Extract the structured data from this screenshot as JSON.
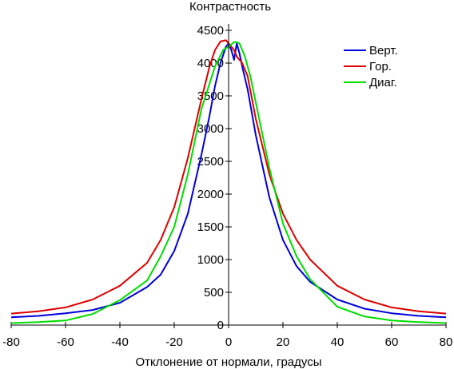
{
  "chart_data": {
    "type": "line",
    "ylabel": "Контрастность",
    "xlabel": "Отклонение от нормали, градусы",
    "xlim": [
      -80,
      80
    ],
    "ylim": [
      0,
      4500
    ],
    "xticks": [
      -80,
      -60,
      -40,
      -20,
      0,
      20,
      40,
      60,
      80
    ],
    "yticks": [
      0,
      500,
      1000,
      1500,
      2000,
      2500,
      3000,
      3500,
      4000,
      4500
    ],
    "grid": false,
    "legend_position": "top-right",
    "series": [
      {
        "name": "Верт.",
        "color": "#0000dd",
        "x": [
          -80,
          -70,
          -60,
          -50,
          -40,
          -30,
          -25,
          -20,
          -15,
          -10,
          -7,
          -5,
          -3,
          -1,
          0,
          1,
          2,
          3,
          4,
          5,
          7,
          10,
          15,
          20,
          25,
          30,
          40,
          50,
          60,
          70,
          80
        ],
        "y": [
          120,
          140,
          180,
          230,
          340,
          580,
          770,
          1130,
          1700,
          2600,
          3200,
          3650,
          4000,
          4250,
          4300,
          4200,
          4050,
          4300,
          4150,
          3950,
          3600,
          2900,
          1950,
          1300,
          900,
          660,
          390,
          250,
          180,
          140,
          120
        ]
      },
      {
        "name": "Гор.",
        "color": "#dd0000",
        "x": [
          -80,
          -70,
          -60,
          -50,
          -40,
          -30,
          -25,
          -20,
          -15,
          -10,
          -7,
          -5,
          -3,
          -1,
          0,
          1,
          2,
          3,
          4,
          5,
          7,
          10,
          15,
          20,
          25,
          30,
          40,
          50,
          60,
          70,
          80
        ],
        "y": [
          175,
          210,
          270,
          390,
          600,
          950,
          1300,
          1800,
          2550,
          3450,
          3950,
          4200,
          4330,
          4350,
          4300,
          4250,
          4200,
          4100,
          4050,
          4000,
          3800,
          3150,
          2300,
          1700,
          1300,
          1000,
          600,
          390,
          270,
          210,
          175
        ]
      },
      {
        "name": "Диаг.",
        "color": "#00dd00",
        "x": [
          -80,
          -70,
          -60,
          -50,
          -40,
          -30,
          -25,
          -20,
          -15,
          -10,
          -5,
          -2,
          0,
          2,
          3,
          4,
          6,
          8,
          10,
          15,
          20,
          25,
          30,
          40,
          50,
          60,
          70,
          80
        ],
        "y": [
          30,
          45,
          70,
          170,
          380,
          680,
          1050,
          1500,
          2300,
          3300,
          3950,
          4200,
          4250,
          4320,
          4320,
          4300,
          4100,
          3800,
          3400,
          2400,
          1550,
          1050,
          700,
          280,
          130,
          70,
          45,
          30
        ]
      }
    ]
  }
}
